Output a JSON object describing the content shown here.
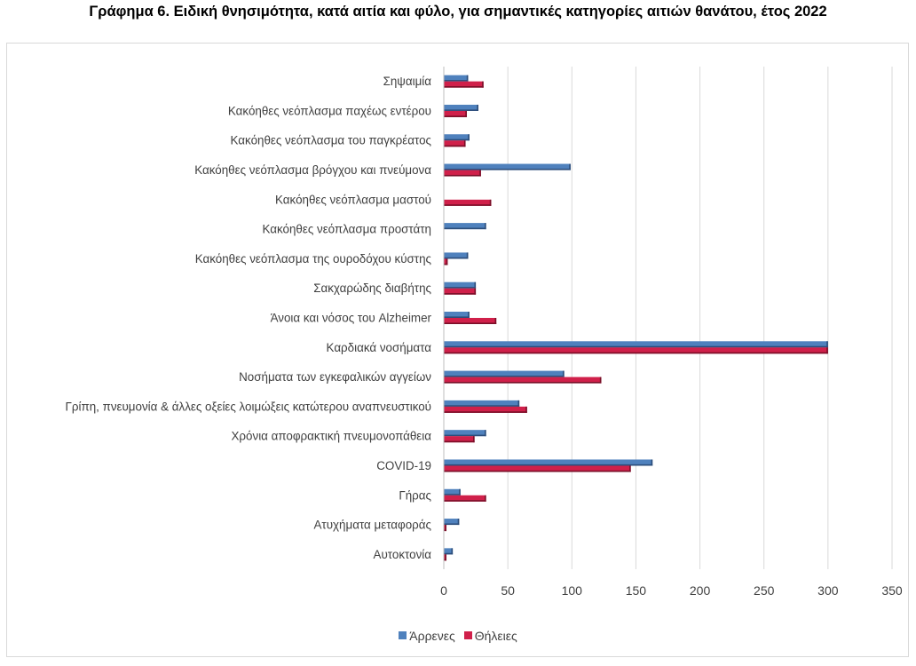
{
  "title": "Γράφημα 6. Ειδική θνησιμότητα, κατά αιτία και φύλο, για σημαντικές κατηγορίες αιτιών θανάτου, έτος 2022",
  "colors": {
    "male": "#4f81bd",
    "male_dark": "#2c4d7a",
    "female": "#d0204a",
    "female_dark": "#7a0f28",
    "grid": "#d9d9d9"
  },
  "chart_data": {
    "type": "bar",
    "orientation": "horizontal",
    "title": "Γράφημα 6. Ειδική θνησιμότητα, κατά αιτία και φύλο, για σημαντικές κατηγορίες αιτιών θανάτου, έτος 2022",
    "xlabel": "",
    "ylabel": "",
    "xlim": [
      0,
      350
    ],
    "xticks": [
      0,
      50,
      100,
      150,
      200,
      250,
      300,
      350
    ],
    "grid": true,
    "legend_position": "bottom",
    "categories": [
      "Σηψαιμία",
      "Κακόηθες νεόπλασμα παχέως εντέρου",
      "Κακόηθες νεόπλασμα του παγκρέατος",
      "Κακόηθες νεόπλασμα βρόγχου και πνεύμονα",
      "Κακόηθες νεόπλασμα μαστού",
      "Κακόηθες νεόπλασμα προστάτη",
      "Κακόηθες νεόπλασμα της ουροδόχου κύστης",
      "Σακχαρώδης διαβήτης",
      "Άνοια και νόσος του Alzheimer",
      "Καρδιακά νοσήματα",
      "Νοσήματα των εγκεφαλικών αγγείων",
      "Γρίπη, πνευμονία & άλλες οξείες λοιμώξεις  κατώτερου αναπνευστικού",
      "Χρόνια αποφρακτική πνευμονοπάθεια",
      "COVID-19",
      "Γήρας",
      "Ατυχήματα μεταφοράς",
      "Αυτοκτονία"
    ],
    "series": [
      {
        "name": "Άρρενες",
        "values": [
          19,
          27,
          20,
          99,
          0,
          33,
          19,
          25,
          20,
          300,
          94,
          59,
          33,
          163,
          13,
          12,
          7
        ]
      },
      {
        "name": "Θήλειες",
        "values": [
          31,
          18,
          17,
          29,
          37,
          0,
          3,
          25,
          41,
          300,
          123,
          65,
          24,
          146,
          33,
          2,
          2
        ]
      }
    ]
  }
}
